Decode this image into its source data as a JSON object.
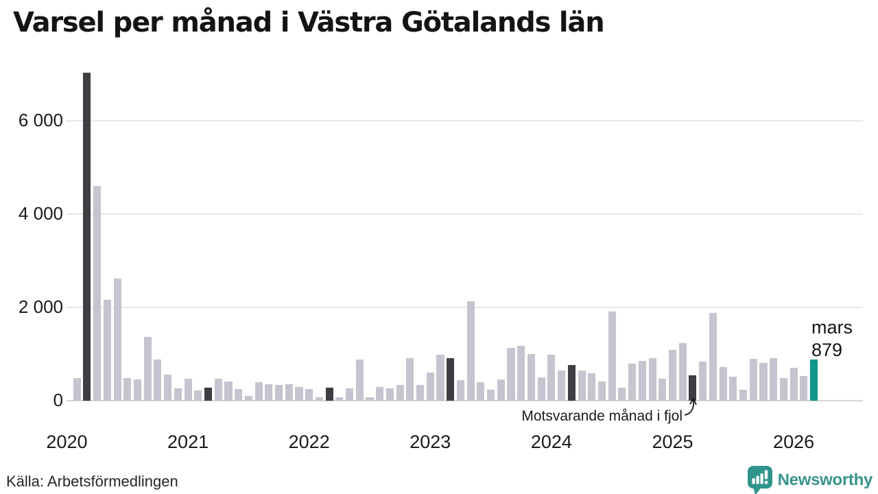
{
  "header": {
    "title": "Varsel per månad i Västra Götalands län"
  },
  "footer": {
    "source": "Källa: Arbetsförmedlingen",
    "brand_name": "Newsworthy",
    "brand_color": "#38948b",
    "brand_icon": "newsworthy-speech-bubble-bar-chart-icon"
  },
  "chart_data": {
    "type": "bar",
    "title": "Varsel per månad i Västra Götalands län",
    "xlabel": "",
    "ylabel": "",
    "grid": "horizontal-only",
    "legend": "none",
    "ylim": [
      0,
      7100
    ],
    "y_ticks": [
      {
        "value": 0,
        "label": "0"
      },
      {
        "value": 2000,
        "label": "2 000"
      },
      {
        "value": 4000,
        "label": "4 000"
      },
      {
        "value": 6000,
        "label": "6 000"
      }
    ],
    "x_ticks": [
      "2020",
      "2021",
      "2022",
      "2023",
      "2024",
      "2025",
      "2026"
    ],
    "months": [
      "2020-02",
      "2020-03",
      "2020-04",
      "2020-05",
      "2020-06",
      "2020-07",
      "2020-08",
      "2020-09",
      "2020-10",
      "2020-11",
      "2020-12",
      "2021-01",
      "2021-02",
      "2021-03",
      "2021-04",
      "2021-05",
      "2021-06",
      "2021-07",
      "2021-08",
      "2021-09",
      "2021-10",
      "2021-11",
      "2021-12",
      "2022-01",
      "2022-02",
      "2022-03",
      "2022-04",
      "2022-05",
      "2022-06",
      "2022-07",
      "2022-08",
      "2022-09",
      "2022-10",
      "2022-11",
      "2022-12",
      "2023-01",
      "2023-02",
      "2023-03",
      "2023-04",
      "2023-05",
      "2023-06",
      "2023-07",
      "2023-08",
      "2023-09",
      "2023-10",
      "2023-11",
      "2023-12",
      "2024-01",
      "2024-02",
      "2024-03",
      "2024-04",
      "2024-05",
      "2024-06",
      "2024-07",
      "2024-08",
      "2024-09",
      "2024-10",
      "2024-11",
      "2024-12",
      "2025-01",
      "2025-02",
      "2025-03",
      "2025-04",
      "2025-05",
      "2025-06",
      "2025-07",
      "2025-08",
      "2025-09",
      "2025-10",
      "2025-11",
      "2025-12",
      "2026-01",
      "2026-02",
      "2026-03"
    ],
    "values": [
      490,
      7030,
      4600,
      2160,
      2620,
      480,
      450,
      1370,
      880,
      565,
      260,
      465,
      215,
      280,
      465,
      405,
      245,
      100,
      390,
      350,
      335,
      350,
      290,
      250,
      75,
      280,
      75,
      265,
      875,
      80,
      290,
      270,
      340,
      915,
      340,
      600,
      985,
      910,
      440,
      2130,
      400,
      235,
      455,
      1130,
      1170,
      1005,
      495,
      980,
      650,
      765,
      650,
      585,
      410,
      1905,
      280,
      800,
      860,
      915,
      470,
      1085,
      1240,
      545,
      840,
      1885,
      715,
      515,
      230,
      900,
      815,
      915,
      485,
      700,
      530,
      879
    ],
    "highlight_months": [
      "2020-03",
      "2021-03",
      "2022-03",
      "2023-03",
      "2024-03",
      "2025-03"
    ],
    "current_month": "2026-03",
    "annotation": {
      "text": "Motsvarande månad i fjol",
      "points_to": "2025-03"
    },
    "last_point_label": {
      "line1": "mars",
      "line2": "879"
    },
    "colors": {
      "default_bar": "#c6c4ce",
      "highlight_bar": "#3e3d41",
      "current_bar": "#0f988a",
      "gridline": "#e7e7e7",
      "axis_line": "#d6d6d6"
    }
  }
}
